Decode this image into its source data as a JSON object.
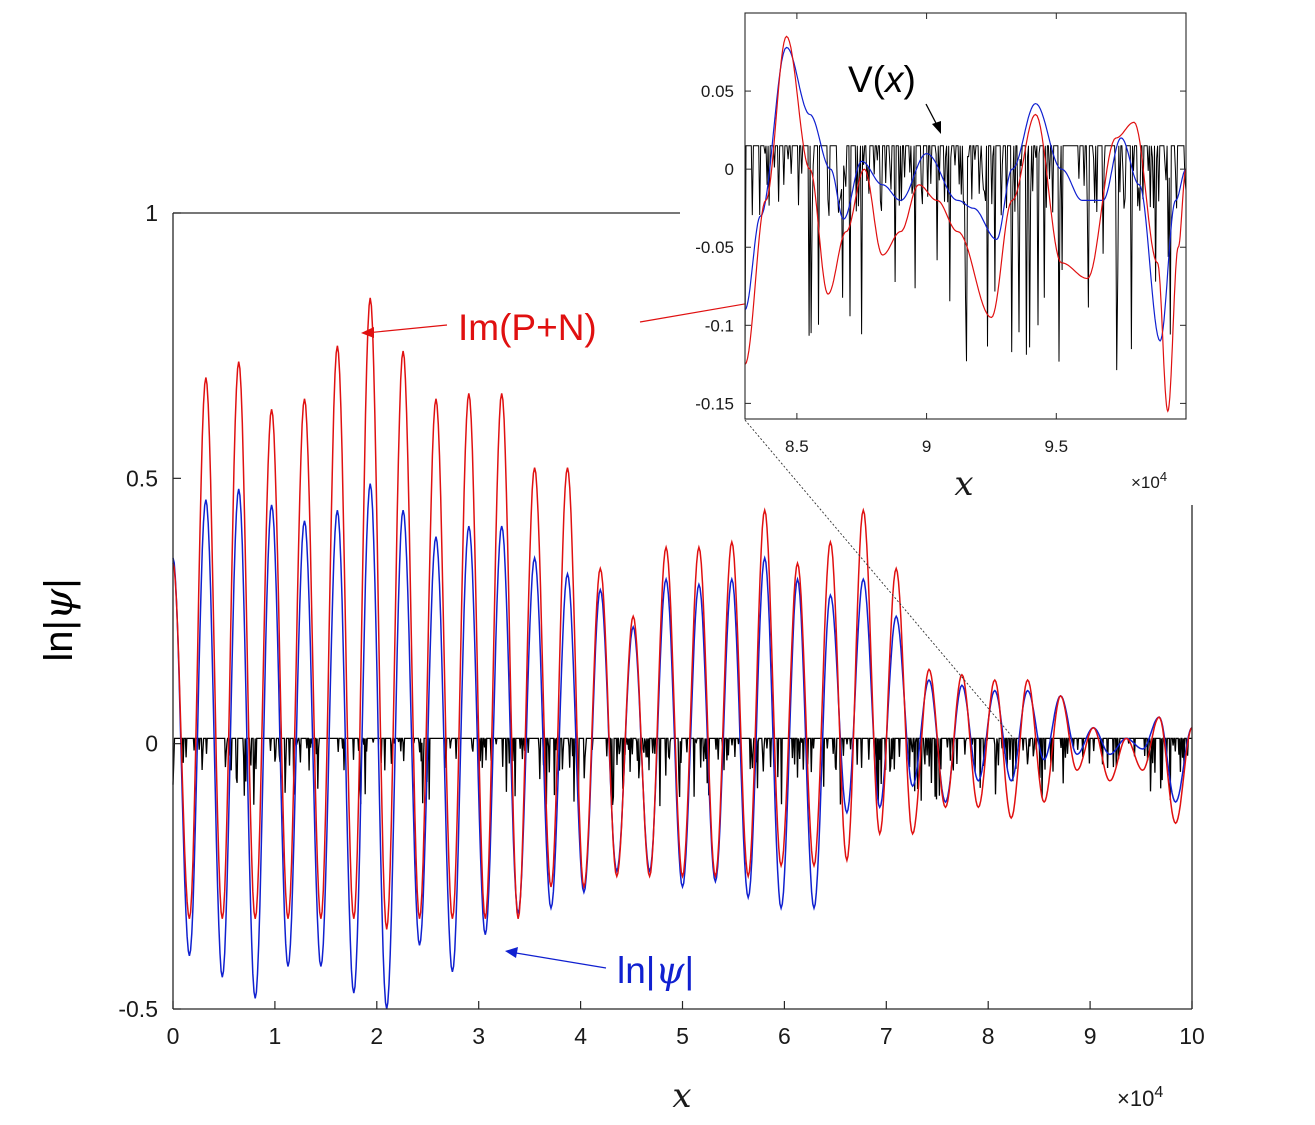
{
  "chart_data": [
    {
      "id": "main",
      "type": "line",
      "xlabel": "x",
      "ylabel": "ln|ψ|",
      "x_multiplier": "×10",
      "x_multiplier_exp": "4",
      "xlim": [
        0,
        10
      ],
      "ylim": [
        -0.5,
        1
      ],
      "xticks": [
        "0",
        "1",
        "2",
        "3",
        "4",
        "5",
        "6",
        "7",
        "8",
        "9",
        "10"
      ],
      "yticks": [
        "-0.5",
        "0",
        "0.5",
        "1"
      ],
      "series": [
        {
          "name": "Im(P+N)",
          "color": "#e01010",
          "peaks": [
            0.34,
            0.69,
            0.72,
            0.63,
            0.65,
            0.75,
            0.84,
            0.74,
            0.65,
            0.66,
            0.66,
            0.52,
            0.52,
            0.33,
            0.24,
            0.37,
            0.37,
            0.38,
            0.44,
            0.34,
            0.38,
            0.44,
            0.33,
            0.14,
            0.13,
            0.12,
            0.12,
            0.09,
            0.03,
            0.01,
            0.05,
            0.03
          ],
          "troughs": [
            -0.33,
            -0.33,
            -0.33,
            -0.33,
            -0.33,
            -0.33,
            -0.35,
            -0.33,
            -0.33,
            -0.33,
            -0.33,
            -0.27,
            -0.27,
            -0.25,
            -0.25,
            -0.25,
            -0.25,
            -0.25,
            -0.23,
            -0.23,
            -0.22,
            -0.17,
            -0.17,
            -0.12,
            -0.12,
            -0.14,
            -0.11,
            -0.05,
            -0.07,
            -0.05,
            -0.15
          ]
        },
        {
          "name": "ln|ψ|",
          "color": "#1020d0",
          "peaks": [
            0.35,
            0.46,
            0.48,
            0.45,
            0.42,
            0.44,
            0.49,
            0.44,
            0.39,
            0.41,
            0.41,
            0.35,
            0.32,
            0.29,
            0.22,
            0.31,
            0.3,
            0.31,
            0.35,
            0.31,
            0.28,
            0.31,
            0.24,
            0.12,
            0.11,
            0.1,
            0.1,
            0.09,
            0.03,
            0.01,
            0.05,
            0.03
          ],
          "troughs": [
            -0.4,
            -0.44,
            -0.48,
            -0.42,
            -0.42,
            -0.47,
            -0.5,
            -0.38,
            -0.43,
            -0.36,
            -0.32,
            -0.31,
            -0.28,
            -0.24,
            -0.24,
            -0.27,
            -0.26,
            -0.29,
            -0.31,
            -0.31,
            -0.13,
            -0.12,
            -0.08,
            -0.11,
            -0.07,
            -0.07,
            -0.03,
            -0.02,
            -0.02,
            -0.01,
            -0.11
          ]
        },
        {
          "name": "V(x)",
          "color": "#000000",
          "baseline": 0.01,
          "min": -0.12
        }
      ],
      "annotations": [
        {
          "text": "Im(P+N)",
          "color": "#e01010"
        },
        {
          "text": "ln|ψ|",
          "color": "#1020d0"
        }
      ]
    },
    {
      "id": "inset",
      "type": "line",
      "xlabel": "x",
      "x_multiplier": "×10",
      "x_multiplier_exp": "4",
      "xlim": [
        8.3,
        10
      ],
      "ylim": [
        -0.16,
        0.1
      ],
      "xticks": [
        "8.5",
        "9",
        "9.5"
      ],
      "yticks": [
        "0.05",
        "0",
        "-0.05",
        "-0.1",
        "-0.15"
      ],
      "series": [
        {
          "name": "Im(P+N)",
          "color": "#e01010"
        },
        {
          "name": "ln|ψ|",
          "color": "#1020d0"
        },
        {
          "name": "V(x)",
          "color": "#000000",
          "baseline": 0.015,
          "min": -0.135
        }
      ],
      "annotations": [
        {
          "text": "V(x)",
          "color": "#000000"
        }
      ]
    }
  ]
}
